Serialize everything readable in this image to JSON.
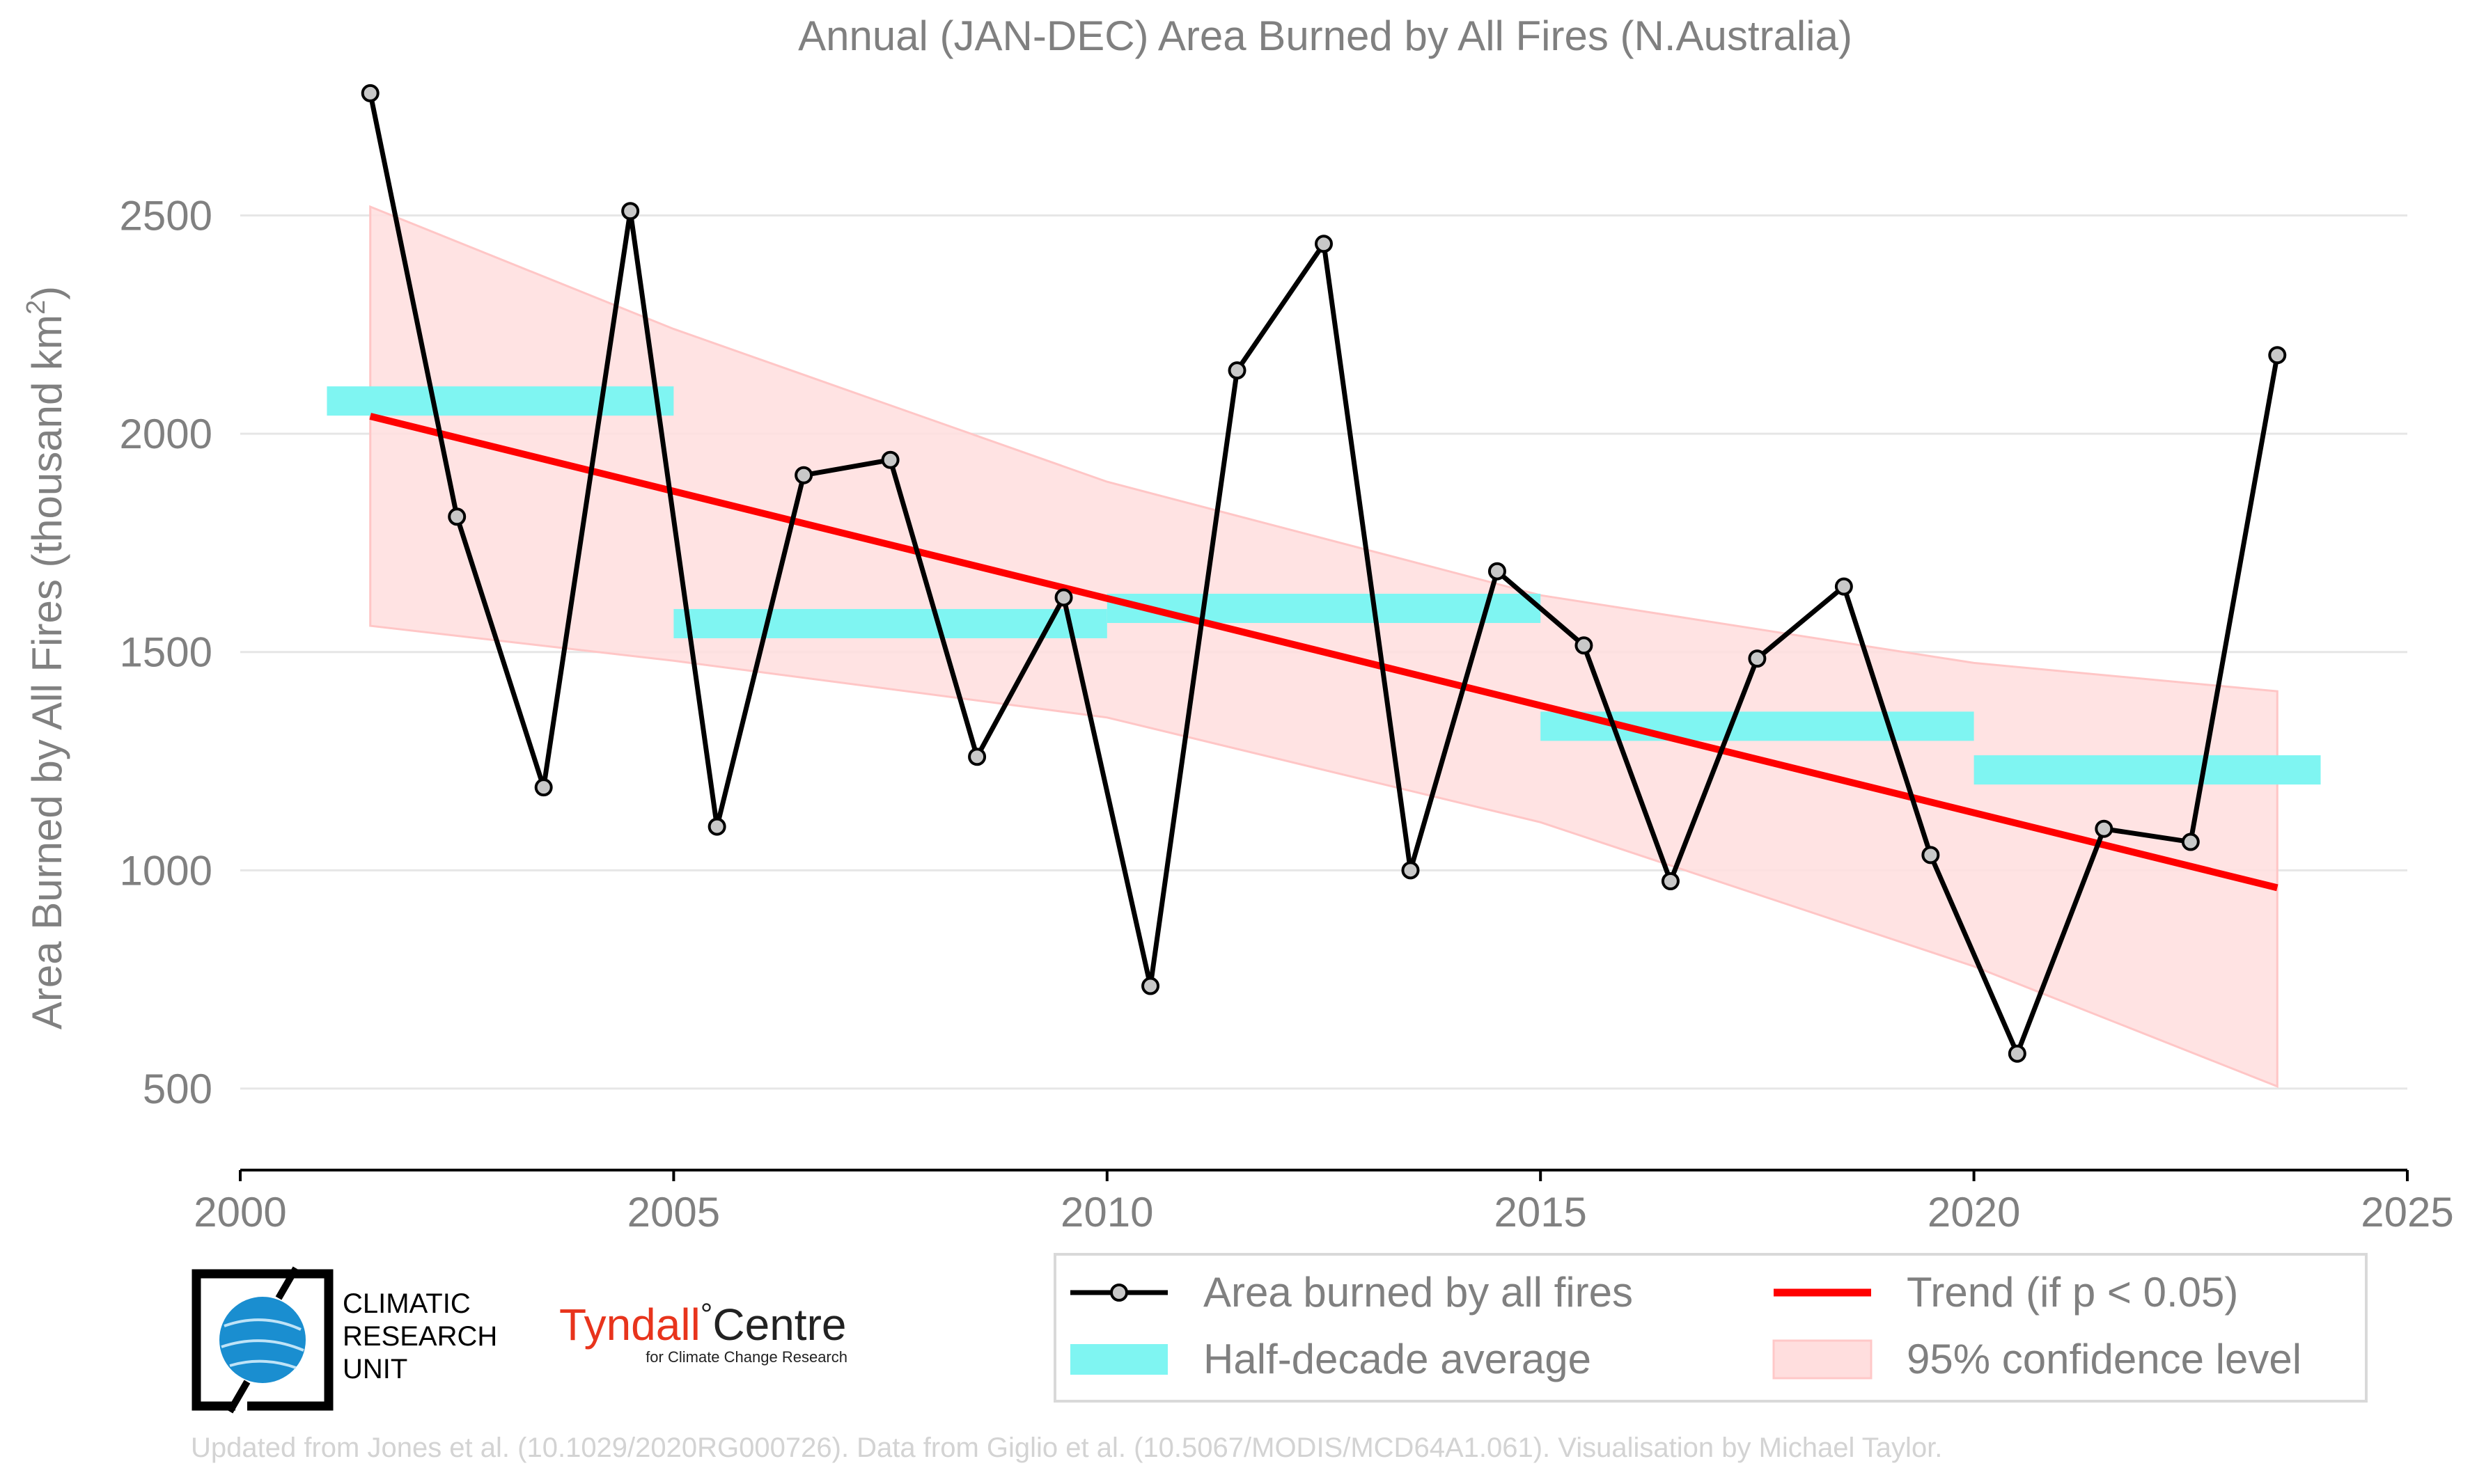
{
  "chart_data": {
    "type": "line",
    "title": "Annual (JAN-DEC) Area Burned by All Fires (N.Australia)",
    "ylabel": "Area Burned by All Fires (thousand km²)",
    "ylabel_main": "Area Burned by All Fires (thousand km",
    "ylabel_sup": "2",
    "ylabel_end": ")",
    "xlabel": "",
    "xlim": [
      2000,
      2025
    ],
    "ylim": [
      350,
      2850
    ],
    "x_ticks": [
      2000,
      2005,
      2010,
      2015,
      2020,
      2025
    ],
    "y_ticks": [
      500,
      1000,
      1500,
      2000,
      2500
    ],
    "grid": "horizontal",
    "legend_position": "bottom-right",
    "series": [
      {
        "name": "Area burned by all fires",
        "color": "#000000",
        "marker_color": "#c8c8c8",
        "x": [
          2001.5,
          2002.5,
          2003.5,
          2004.5,
          2005.5,
          2006.5,
          2007.5,
          2008.5,
          2009.5,
          2010.5,
          2011.5,
          2012.5,
          2013.5,
          2014.5,
          2015.5,
          2016.5,
          2017.5,
          2018.5,
          2019.5,
          2020.5,
          2021.5,
          2022.5,
          2023.5
        ],
        "y": [
          2780,
          1810,
          1190,
          2510,
          1100,
          1905,
          1940,
          1260,
          1625,
          735,
          2145,
          2435,
          1000,
          1685,
          1515,
          975,
          1485,
          1650,
          1035,
          580,
          1095,
          1065,
          2180
        ]
      },
      {
        "name": "Half-decade average",
        "color": "#7ff5f2",
        "segments": [
          {
            "x_start": 2001,
            "x_end": 2005,
            "y": 2075
          },
          {
            "x_start": 2005,
            "x_end": 2010,
            "y": 1565
          },
          {
            "x_start": 2010,
            "x_end": 2015,
            "y": 1600
          },
          {
            "x_start": 2015,
            "x_end": 2020,
            "y": 1330
          },
          {
            "x_start": 2020,
            "x_end": 2024,
            "y": 1230
          }
        ]
      },
      {
        "name": "Trend (if p < 0.05)",
        "color": "#ff0000",
        "x": [
          2001.5,
          2023.5
        ],
        "y": [
          2040,
          960
        ]
      },
      {
        "name": "95% confidence level",
        "color": "#ffdede",
        "x": [
          2001.5,
          2005,
          2010,
          2015,
          2020,
          2023.5
        ],
        "upper": [
          2520,
          2240,
          1890,
          1630,
          1475,
          1410
        ],
        "lower": [
          1560,
          1480,
          1350,
          1110,
          780,
          505
        ]
      }
    ]
  },
  "logos": {
    "cru_lines": [
      "CLIMATIC",
      "RESEARCH",
      "UNIT"
    ],
    "tyndall_main": "Tyndall",
    "tyndall_degree": "°",
    "tyndall_centre": "Centre",
    "tyndall_sub": "for Climate Change Research"
  },
  "footer": "Updated from Jones et al. (10.1029/2020RG000726). Data from Giglio et al. (10.5067/MODIS/MCD64A1.061). Visualisation by Michael Taylor.",
  "colors": {
    "text_gray": "#808080",
    "grid": "#e6e6e6",
    "footer": "#d3d3d3",
    "tyndall_red": "#e8341c",
    "cru_blue": "#1a8ed0"
  }
}
